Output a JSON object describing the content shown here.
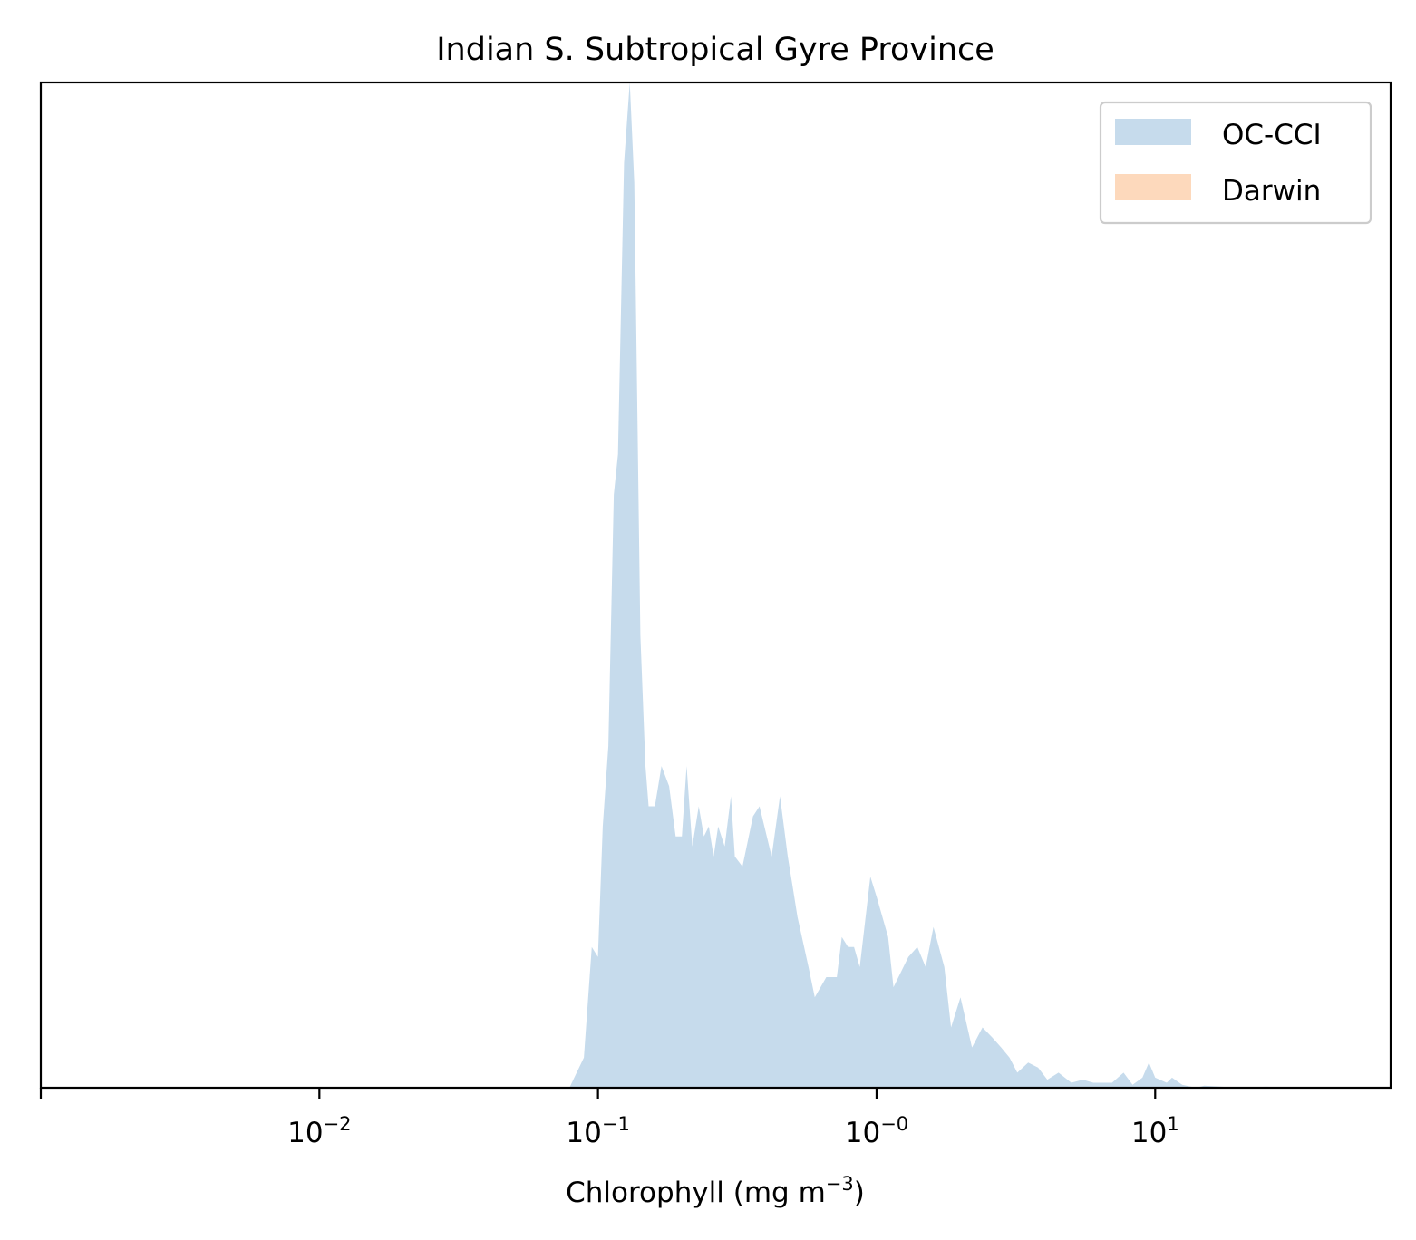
{
  "chart_data": {
    "type": "area",
    "title": "Indian S. Subtropical Gyre Province",
    "xlabel_main": "Chlorophyll  (mg m",
    "xlabel_sup": "−3",
    "xlabel_close": ")",
    "ylabel": "",
    "xscale": "log",
    "xlim": [
      0.001,
      70
    ],
    "ylim": [
      0,
      1.0
    ],
    "grid": false,
    "legend_position": "top-right",
    "xticks": [
      {
        "base": "10",
        "exp": "−2",
        "value": 0.01
      },
      {
        "base": "10",
        "exp": "−1",
        "value": 0.1
      },
      {
        "base": "10",
        "exp": "−0",
        "value": 1
      },
      {
        "base": "10",
        "exp": "1",
        "value": 10
      }
    ],
    "series": [
      {
        "name": "OC-CCI",
        "color": "#c6dbec",
        "x": [
          0.079,
          0.089,
          0.095,
          0.1,
          0.104,
          0.109,
          0.114,
          0.118,
          0.124,
          0.13,
          0.135,
          0.142,
          0.148,
          0.152,
          0.16,
          0.169,
          0.18,
          0.19,
          0.2,
          0.208,
          0.218,
          0.23,
          0.24,
          0.25,
          0.26,
          0.27,
          0.285,
          0.3,
          0.31,
          0.33,
          0.36,
          0.38,
          0.42,
          0.45,
          0.48,
          0.5,
          0.52,
          0.57,
          0.6,
          0.66,
          0.72,
          0.75,
          0.79,
          0.83,
          0.87,
          0.95,
          1.0,
          1.1,
          1.15,
          1.3,
          1.4,
          1.5,
          1.6,
          1.75,
          1.85,
          2.0,
          2.2,
          2.4,
          2.6,
          2.8,
          3.0,
          3.2,
          3.5,
          3.8,
          4.1,
          4.5,
          5.0,
          5.5,
          6.0,
          7.0,
          7.7,
          8.3,
          9.0,
          9.5,
          10.0,
          11.0,
          11.5,
          12.5,
          14.0,
          15.0,
          20.0,
          25.0,
          30.0,
          38.0
        ],
        "y": [
          0.0,
          0.03,
          0.14,
          0.13,
          0.26,
          0.34,
          0.59,
          0.63,
          0.92,
          1.0,
          0.9,
          0.45,
          0.32,
          0.28,
          0.28,
          0.32,
          0.3,
          0.25,
          0.25,
          0.32,
          0.24,
          0.28,
          0.25,
          0.26,
          0.23,
          0.26,
          0.24,
          0.29,
          0.23,
          0.22,
          0.27,
          0.28,
          0.23,
          0.29,
          0.23,
          0.2,
          0.17,
          0.12,
          0.09,
          0.11,
          0.11,
          0.15,
          0.14,
          0.14,
          0.12,
          0.21,
          0.19,
          0.15,
          0.1,
          0.13,
          0.14,
          0.12,
          0.16,
          0.12,
          0.06,
          0.09,
          0.04,
          0.06,
          0.05,
          0.04,
          0.03,
          0.015,
          0.025,
          0.02,
          0.008,
          0.015,
          0.005,
          0.008,
          0.005,
          0.005,
          0.015,
          0.003,
          0.01,
          0.025,
          0.01,
          0.005,
          0.01,
          0.003,
          0.0,
          0.002,
          0.0,
          0.001,
          0.0,
          0.0
        ]
      },
      {
        "name": "Darwin",
        "color": "#fdd9bc",
        "x": [],
        "y": []
      }
    ]
  }
}
